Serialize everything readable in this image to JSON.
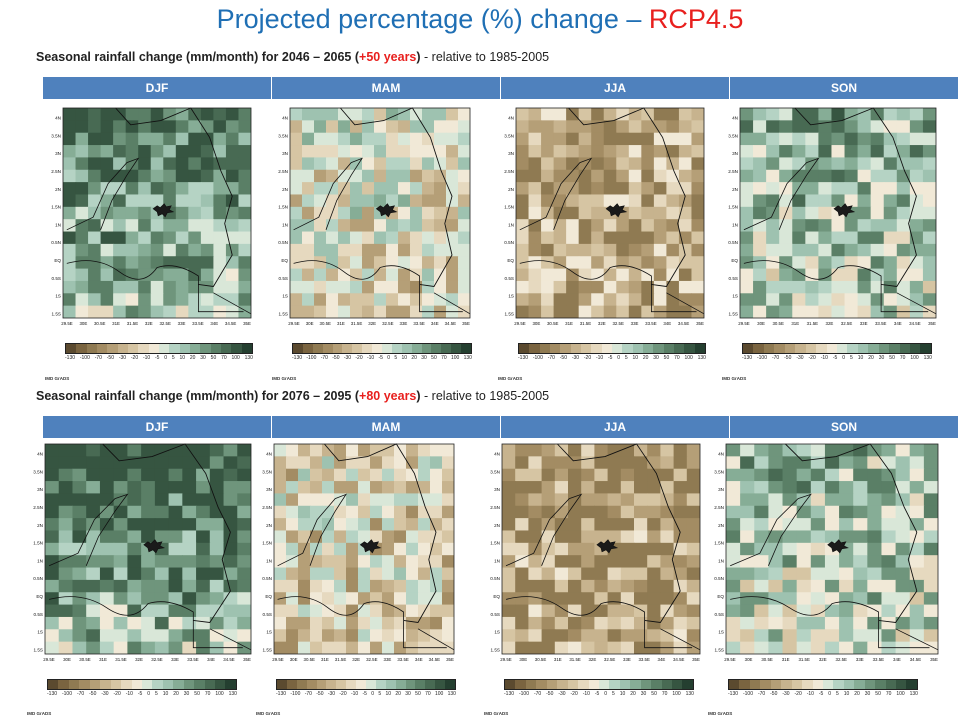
{
  "title": {
    "main": "Projected percentage (%) change – ",
    "accent": "RCP4.5"
  },
  "section1": {
    "subtitle_bold": "Seasonal rainfall change (mm/month) for 2046 – 2065  (",
    "subtitle_red": "+50 years",
    "subtitle_mid": ")",
    "subtitle_norm": " - relative to 1985-2005"
  },
  "section2": {
    "subtitle_bold": "Seasonal rainfall change (mm/month) for 2076 – 2095  (",
    "subtitle_red": "+80 years",
    "subtitle_mid": ")",
    "subtitle_norm": " - relative to 1985-2005"
  },
  "seasons": [
    "DJF",
    "MAM",
    "JJA",
    "SON"
  ],
  "axes": {
    "lat_ticks": [
      "4N",
      "3.5N",
      "3N",
      "2.5N",
      "2N",
      "1.5N",
      "1N",
      "0.5N",
      "EQ",
      "0.5S",
      "1S",
      "1.5S"
    ],
    "lon_ticks": [
      "29.5E",
      "30E",
      "30.5E",
      "31E",
      "31.5E",
      "32E",
      "32.5E",
      "33E",
      "33.5E",
      "34E",
      "34.5E",
      "35E"
    ]
  },
  "colorbar": {
    "labels": [
      "-130",
      "-100",
      "-70",
      "-50",
      "-30",
      "-20",
      "-10",
      "-5",
      "0",
      "5",
      "10",
      "20",
      "30",
      "50",
      "70",
      "100",
      "130"
    ],
    "colors": [
      "#5b4a2f",
      "#7a6440",
      "#8f7a52",
      "#a38c63",
      "#b59f77",
      "#c7b38e",
      "#d6c5a3",
      "#e6d9bf",
      "#f1e9d7",
      "#d9e7d8",
      "#b5d3c4",
      "#9ec2b0",
      "#86ad96",
      "#6f957c",
      "#5a7f66",
      "#486a53",
      "#365541",
      "#243f30"
    ]
  },
  "credit": "IMD GrADS",
  "maps": {
    "row1": [
      {
        "season": "DJF",
        "bias": 0.45,
        "north_wet": 0.6
      },
      {
        "season": "MAM",
        "bias": -0.1,
        "north_wet": 0.2
      },
      {
        "season": "JJA",
        "bias": -0.45,
        "north_wet": 0.0
      },
      {
        "season": "SON",
        "bias": 0.25,
        "north_wet": 0.3
      }
    ],
    "row2": [
      {
        "season": "DJF",
        "bias": 0.55,
        "north_wet": 0.75
      },
      {
        "season": "MAM",
        "bias": -0.2,
        "north_wet": 0.1
      },
      {
        "season": "JJA",
        "bias": -0.55,
        "north_wet": -0.1
      },
      {
        "season": "SON",
        "bias": 0.2,
        "north_wet": 0.2
      }
    ]
  }
}
